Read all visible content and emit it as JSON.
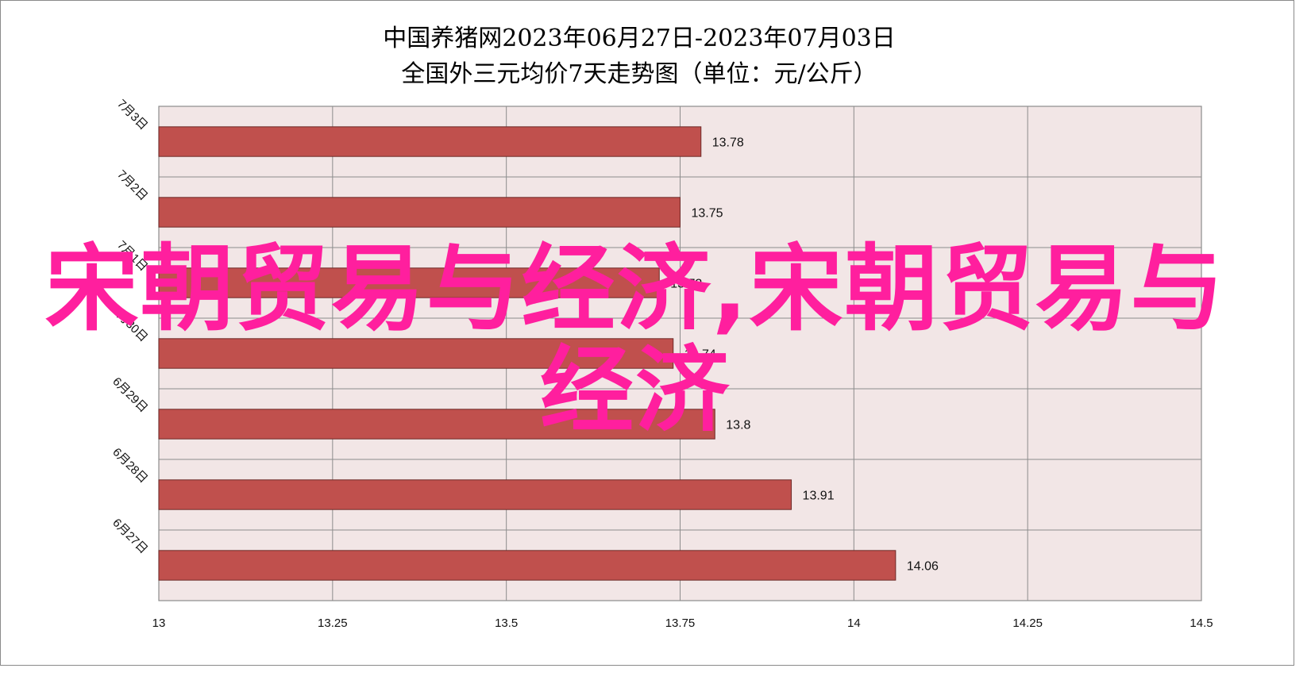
{
  "chart_data": {
    "type": "bar",
    "orientation": "horizontal",
    "title": "中国养猪网2023年06月27日-2023年07月03日",
    "subtitle": "全国外三元均价7天走势图（单位：元/公斤）",
    "categories": [
      "7月3日",
      "7月2日",
      "7月1日",
      "6月30日",
      "6月29日",
      "6月28日",
      "6月27日"
    ],
    "values": [
      13.78,
      13.75,
      13.72,
      13.74,
      13.8,
      13.91,
      14.06
    ],
    "data_labels": [
      "13.78",
      "13.75",
      "13.72",
      "13.74",
      "13.8",
      "13.91",
      "14.06"
    ],
    "xlim": [
      13,
      14.5
    ],
    "x_ticks": [
      "13",
      "13.25",
      "13.5",
      "13.75",
      "14",
      "14.25",
      "14.5"
    ],
    "grid": true,
    "bar_color": "#c0504d",
    "plot_background": "#f2e6e6"
  },
  "overlay": {
    "text": "宋朝贸易与经济,宋朝贸易与经济",
    "color": "#ff1f9e"
  }
}
